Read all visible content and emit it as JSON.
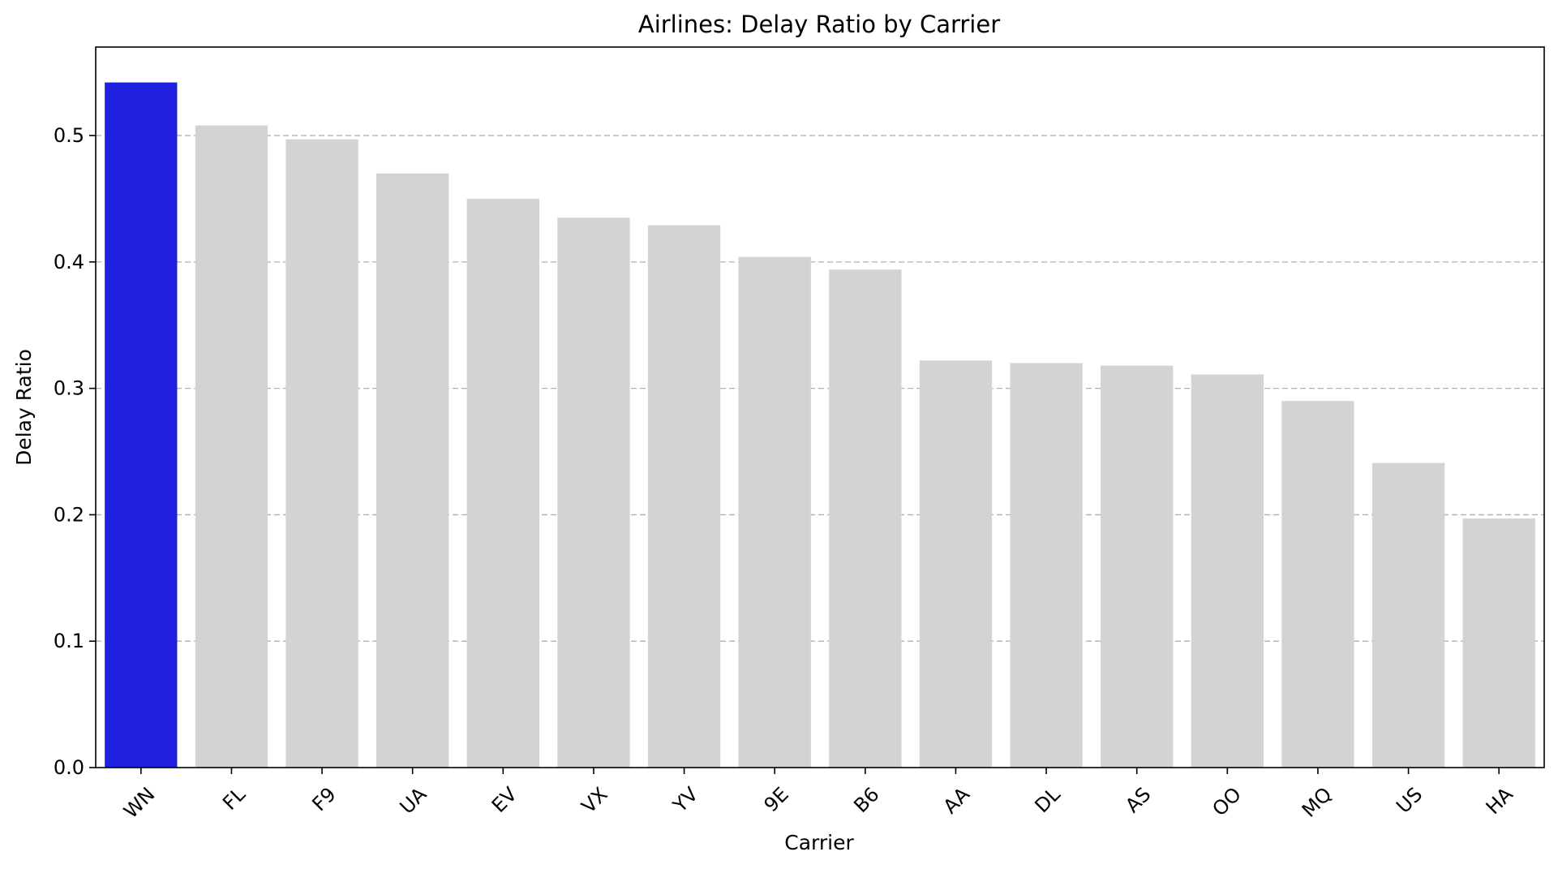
{
  "chart_data": {
    "type": "bar",
    "title": "Airlines: Delay Ratio by Carrier",
    "xlabel": "Carrier",
    "ylabel": "Delay Ratio",
    "categories": [
      "WN",
      "FL",
      "F9",
      "UA",
      "EV",
      "VX",
      "YV",
      "9E",
      "B6",
      "AA",
      "DL",
      "AS",
      "OO",
      "MQ",
      "US",
      "HA"
    ],
    "values": [
      0.542,
      0.508,
      0.497,
      0.47,
      0.45,
      0.435,
      0.429,
      0.404,
      0.394,
      0.322,
      0.32,
      0.318,
      0.311,
      0.29,
      0.241,
      0.197
    ],
    "highlight_category": "WN",
    "colors": {
      "highlight": "#2020e0",
      "default": "#d3d3d3"
    },
    "ylim": [
      0,
      0.57
    ],
    "yticks": [
      "0.0",
      "0.1",
      "0.2",
      "0.3",
      "0.4",
      "0.5"
    ],
    "ytick_values": [
      0.0,
      0.1,
      0.2,
      0.3,
      0.4,
      0.5
    ],
    "grid": "horizontal dashed",
    "legend": "none"
  }
}
